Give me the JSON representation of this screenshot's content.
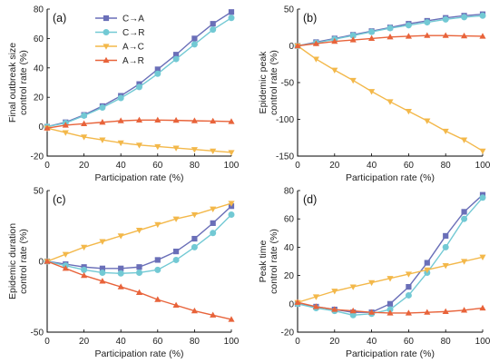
{
  "colors": {
    "C->A": "#6a6fb8",
    "C->R": "#72c9d4",
    "A->C": "#f3b84a",
    "A->R": "#e8633a"
  },
  "legend": {
    "entries": [
      {
        "key": "C->A",
        "label": "C→A",
        "marker": "square"
      },
      {
        "key": "C->R",
        "label": "C→R",
        "marker": "circle"
      },
      {
        "key": "A->C",
        "label": "A→C",
        "marker": "triangle-down"
      },
      {
        "key": "A->R",
        "label": "A→R",
        "marker": "triangle-up"
      }
    ]
  },
  "chart_data": [
    {
      "type": "line",
      "panel": "(a)",
      "xlabel": "Participation rate (%)",
      "ylabel": [
        "Final outbreak size",
        "control rate (%)"
      ],
      "xlim": [
        0,
        100
      ],
      "ylim": [
        -20,
        80
      ],
      "xticks": [
        0,
        20,
        40,
        60,
        80,
        100
      ],
      "yticks": [
        -20,
        0,
        20,
        40,
        60,
        80
      ],
      "x": [
        0,
        10,
        20,
        30,
        40,
        50,
        60,
        70,
        80,
        90,
        100
      ],
      "series": [
        {
          "name": "C→A",
          "key": "C->A",
          "marker": "square",
          "values": [
            0,
            3,
            8,
            14,
            21,
            29,
            39,
            49,
            60,
            70,
            78
          ]
        },
        {
          "name": "C→R",
          "key": "C->R",
          "marker": "circle",
          "values": [
            0,
            2.5,
            7.5,
            13,
            19.5,
            27,
            36,
            46,
            56,
            66,
            74
          ]
        },
        {
          "name": "A→C",
          "key": "A->C",
          "marker": "triangle-down",
          "values": [
            -1,
            -4,
            -7,
            -9,
            -11,
            -12.5,
            -13.5,
            -14.5,
            -15.5,
            -16.5,
            -17.5
          ]
        },
        {
          "name": "A→R",
          "key": "A->R",
          "marker": "triangle-up",
          "values": [
            -1,
            1,
            2,
            3,
            4,
            4.5,
            4.5,
            4.3,
            4,
            3.8,
            3.5
          ]
        }
      ]
    },
    {
      "type": "line",
      "panel": "(b)",
      "xlabel": "Participation rate (%)",
      "ylabel": [
        "Epidemic peak",
        "control rate (%)"
      ],
      "xlim": [
        0,
        100
      ],
      "ylim": [
        -150,
        50
      ],
      "xticks": [
        0,
        20,
        40,
        60,
        80,
        100
      ],
      "yticks": [
        -150,
        -100,
        -50,
        0,
        50
      ],
      "x": [
        0,
        10,
        20,
        30,
        40,
        50,
        60,
        70,
        80,
        90,
        100
      ],
      "series": [
        {
          "name": "C→A",
          "key": "C->A",
          "marker": "square",
          "values": [
            0,
            5,
            10,
            15,
            20,
            25,
            30,
            34,
            38,
            41,
            43
          ]
        },
        {
          "name": "C→R",
          "key": "C->R",
          "marker": "circle",
          "values": [
            0,
            4,
            9,
            14,
            19,
            24,
            28,
            32,
            36,
            39,
            41
          ]
        },
        {
          "name": "A→C",
          "key": "A->C",
          "marker": "triangle-down",
          "values": [
            0,
            -18,
            -33,
            -47,
            -62,
            -76,
            -89,
            -102,
            -116,
            -128,
            -143
          ]
        },
        {
          "name": "A→R",
          "key": "A->R",
          "marker": "triangle-up",
          "values": [
            0,
            3,
            6,
            8,
            10,
            12,
            13,
            14,
            14,
            13.5,
            13
          ]
        }
      ]
    },
    {
      "type": "line",
      "panel": "(c)",
      "xlabel": "Participation rate (%)",
      "ylabel": [
        "Epidemic duration",
        "control rate (%)"
      ],
      "xlim": [
        0,
        100
      ],
      "ylim": [
        -50,
        50
      ],
      "xticks": [
        0,
        20,
        40,
        60,
        80,
        100
      ],
      "yticks": [
        -50,
        0,
        50
      ],
      "x": [
        0,
        10,
        20,
        30,
        40,
        50,
        60,
        70,
        80,
        90,
        100
      ],
      "series": [
        {
          "name": "C→A",
          "key": "C->A",
          "marker": "square",
          "values": [
            0,
            -2,
            -4,
            -5,
            -5,
            -4,
            1,
            7,
            16,
            27,
            39
          ]
        },
        {
          "name": "C→R",
          "key": "C->R",
          "marker": "circle",
          "values": [
            0,
            -3,
            -6,
            -8,
            -8.5,
            -8,
            -6,
            1,
            10,
            20,
            33
          ]
        },
        {
          "name": "A→C",
          "key": "A->C",
          "marker": "triangle-down",
          "values": [
            0,
            5,
            10,
            14,
            18,
            22,
            26,
            30,
            33,
            37,
            41
          ]
        },
        {
          "name": "A→R",
          "key": "A->R",
          "marker": "triangle-up",
          "values": [
            0,
            -5,
            -10,
            -14,
            -18,
            -22,
            -27,
            -31,
            -35,
            -38,
            -41
          ]
        }
      ]
    },
    {
      "type": "line",
      "panel": "(d)",
      "xlabel": "Participation rate (%)",
      "ylabel": [
        "Peak time",
        "control rate (%)"
      ],
      "xlim": [
        0,
        100
      ],
      "ylim": [
        -20,
        80
      ],
      "xticks": [
        0,
        20,
        40,
        60,
        80,
        100
      ],
      "yticks": [
        -20,
        0,
        20,
        40,
        60,
        80
      ],
      "x": [
        0,
        10,
        20,
        30,
        40,
        50,
        60,
        70,
        80,
        90,
        100
      ],
      "series": [
        {
          "name": "C→A",
          "key": "C->A",
          "marker": "square",
          "values": [
            0,
            -2,
            -4,
            -6,
            -6,
            0,
            12,
            29,
            48,
            65,
            77
          ]
        },
        {
          "name": "C→R",
          "key": "C->R",
          "marker": "circle",
          "values": [
            0,
            -3,
            -5,
            -8,
            -7,
            -4,
            6,
            22,
            40,
            60,
            75
          ]
        },
        {
          "name": "A→C",
          "key": "A->C",
          "marker": "triangle-down",
          "values": [
            1,
            5,
            9,
            12,
            15,
            18,
            21,
            24,
            27,
            30,
            33
          ]
        },
        {
          "name": "A→R",
          "key": "A->R",
          "marker": "triangle-up",
          "values": [
            1,
            -2,
            -4,
            -5,
            -6,
            -6.5,
            -6.5,
            -6,
            -5.5,
            -4.5,
            -3
          ]
        }
      ]
    }
  ]
}
